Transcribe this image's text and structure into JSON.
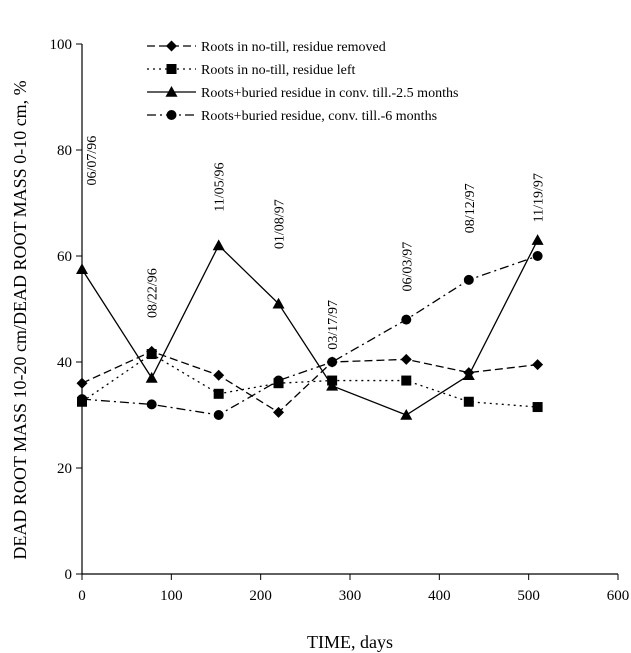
{
  "chart_data": {
    "type": "line",
    "title": "",
    "xlabel": "TIME, days",
    "ylabel": "DEAD ROOT MASS 10-20 cm/DEAD ROOT MASS 0-10 cm, %",
    "xlim": [
      0,
      600
    ],
    "ylim": [
      0,
      100
    ],
    "x_ticks": [
      0,
      100,
      200,
      300,
      400,
      500,
      600
    ],
    "y_ticks": [
      0,
      20,
      40,
      60,
      80,
      100
    ],
    "grid": false,
    "legend_position": "top-left",
    "series": [
      {
        "name": "Roots in no-till, residue removed",
        "marker": "diamond",
        "dash": "dashed",
        "x": [
          0,
          78,
          153,
          220,
          280,
          363,
          433,
          510
        ],
        "y": [
          36,
          42,
          37.5,
          30.5,
          40,
          40.5,
          38,
          39.5
        ]
      },
      {
        "name": "Roots in no-till, residue left",
        "marker": "square",
        "dash": "dotted",
        "x": [
          0,
          78,
          153,
          220,
          280,
          363,
          433,
          510
        ],
        "y": [
          32.5,
          41.5,
          34,
          36,
          36.5,
          36.5,
          32.5,
          31.5
        ]
      },
      {
        "name": "Roots+buried residue in conv. till.-2.5 months",
        "marker": "triangle",
        "dash": "solid",
        "x": [
          0,
          78,
          153,
          220,
          280,
          363,
          433,
          510
        ],
        "y": [
          57.5,
          37,
          62,
          51,
          35.5,
          30,
          37.5,
          63
        ]
      },
      {
        "name": "Roots+buried residue, conv. till.-6 months",
        "marker": "circle",
        "dash": "dashdot",
        "x": [
          0,
          78,
          153,
          220,
          280,
          363,
          433,
          510
        ],
        "y": [
          33,
          32,
          30,
          36.5,
          40,
          48,
          55.5,
          60
        ]
      }
    ],
    "annotations": [
      {
        "text": "06/07/96",
        "x": 10,
        "y": 78
      },
      {
        "text": "08/22/96",
        "x": 78,
        "y": 53
      },
      {
        "text": "11/05/96",
        "x": 153,
        "y": 73
      },
      {
        "text": "01/08/97",
        "x": 220,
        "y": 66
      },
      {
        "text": "03/17/97",
        "x": 280,
        "y": 47
      },
      {
        "text": "06/03/97",
        "x": 363,
        "y": 58
      },
      {
        "text": "08/12/97",
        "x": 433,
        "y": 69
      },
      {
        "text": "11/19/97",
        "x": 510,
        "y": 71
      }
    ]
  }
}
